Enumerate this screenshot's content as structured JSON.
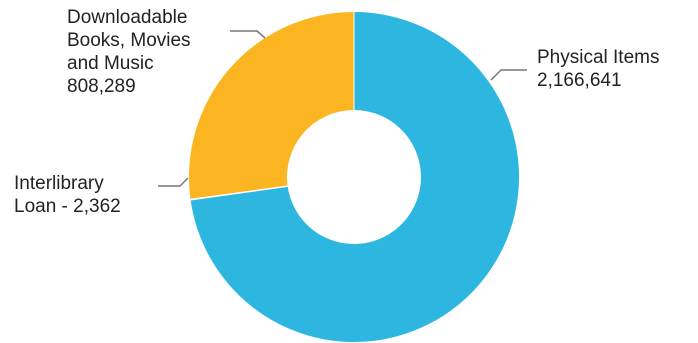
{
  "chart_data": {
    "type": "pie",
    "variant": "donut",
    "title": "",
    "start_angle_deg": 90,
    "direction": "clockwise",
    "slices": [
      {
        "name": "Physical Items",
        "value": 2166641,
        "color": "#2db6df",
        "label_lines": [
          "Physical Items",
          "2,166,641"
        ]
      },
      {
        "name": "Interlibrary Loan",
        "value": 2362,
        "color": "#1a1a1a",
        "label_lines": [
          "Interlibrary",
          "Loan - 2,362"
        ]
      },
      {
        "name": "Downloadable Books, Movies and Music",
        "value": 808289,
        "color": "#fbb520",
        "label_lines": [
          "Downloadable",
          "Books, Movies",
          "and Music",
          "808,289"
        ]
      }
    ]
  }
}
